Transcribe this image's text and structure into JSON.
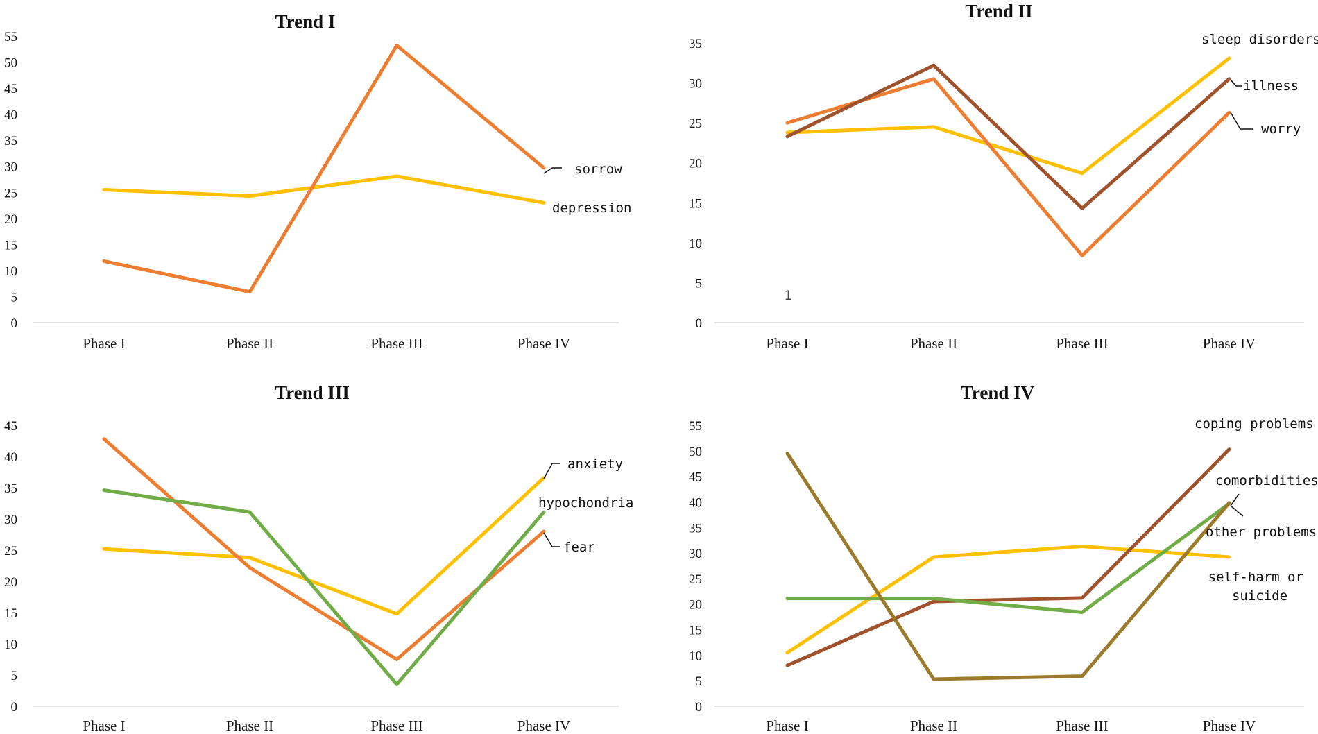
{
  "chart_data": [
    {
      "type": "line",
      "title": "Trend I",
      "categories": [
        "Phase  I",
        "Phase  II",
        "Phase III",
        "Phase IV"
      ],
      "ylim": [
        0,
        55
      ],
      "yticks": [
        0,
        5,
        10,
        15,
        20,
        25,
        30,
        35,
        40,
        45,
        50,
        55
      ],
      "xlabel": "",
      "ylabel": "",
      "series": [
        {
          "name": "depression",
          "color": "#FFC000",
          "values": [
            25.5,
            24.3,
            28.1,
            23
          ]
        },
        {
          "name": "sorrow",
          "color": "#ED7D31",
          "values": [
            11.8,
            5.9,
            53.2,
            29.7
          ]
        }
      ]
    },
    {
      "type": "line",
      "title": "Trend II",
      "categories": [
        "Phase  I",
        "Phase  II",
        "Phase III",
        "Phase IV"
      ],
      "ylim": [
        0,
        35
      ],
      "yticks": [
        0,
        5,
        10,
        15,
        20,
        25,
        30,
        35
      ],
      "xlabel": "",
      "ylabel": "",
      "annotation": "1",
      "series": [
        {
          "name": "sleep disorders",
          "color": "#FFC000",
          "values": [
            23.8,
            24.5,
            18.7,
            33.1
          ]
        },
        {
          "name": "worry",
          "color": "#ED7D31",
          "values": [
            25,
            30.5,
            8.4,
            26.3
          ]
        },
        {
          "name": "illness",
          "color": "#A0522D",
          "values": [
            23.3,
            32.2,
            14.3,
            30.5
          ]
        }
      ]
    },
    {
      "type": "line",
      "title": "Trend III",
      "categories": [
        "Phase  I",
        "Phase  II",
        "Phase III",
        "Phase IV"
      ],
      "ylim": [
        0,
        45
      ],
      "yticks": [
        0,
        5,
        10,
        15,
        20,
        25,
        30,
        35,
        40,
        45
      ],
      "xlabel": "",
      "ylabel": "",
      "series": [
        {
          "name": "anxiety",
          "color": "#FFC000",
          "values": [
            25.2,
            23.8,
            14.8,
            36.6
          ]
        },
        {
          "name": "fear",
          "color": "#ED7D31",
          "values": [
            42.8,
            22.2,
            7.5,
            28
          ]
        },
        {
          "name": "hypochondria",
          "color": "#70AD47",
          "values": [
            34.6,
            31.1,
            3.5,
            31.1
          ]
        }
      ]
    },
    {
      "type": "line",
      "title": "Trend IV",
      "categories": [
        "Phase  I",
        "Phase  II",
        "Phase III",
        "Phase IV"
      ],
      "ylim": [
        0,
        55
      ],
      "yticks": [
        0,
        5,
        10,
        15,
        20,
        25,
        30,
        35,
        40,
        45,
        50,
        55
      ],
      "xlabel": "",
      "ylabel": "",
      "series": [
        {
          "name": "self-harm or suicide",
          "color": "#FFC000",
          "values": [
            10.5,
            29.2,
            31.3,
            29.2
          ]
        },
        {
          "name": "coping problems",
          "color": "#A0522D",
          "values": [
            8,
            20.5,
            21.2,
            50.3
          ]
        },
        {
          "name": "other problems",
          "color": "#70AD47",
          "values": [
            21.1,
            21.1,
            18.4,
            39.7
          ]
        },
        {
          "name": "comorbidities",
          "color": "#9C7A2C",
          "values": [
            49.5,
            5.3,
            5.9,
            39.8
          ]
        }
      ]
    }
  ]
}
